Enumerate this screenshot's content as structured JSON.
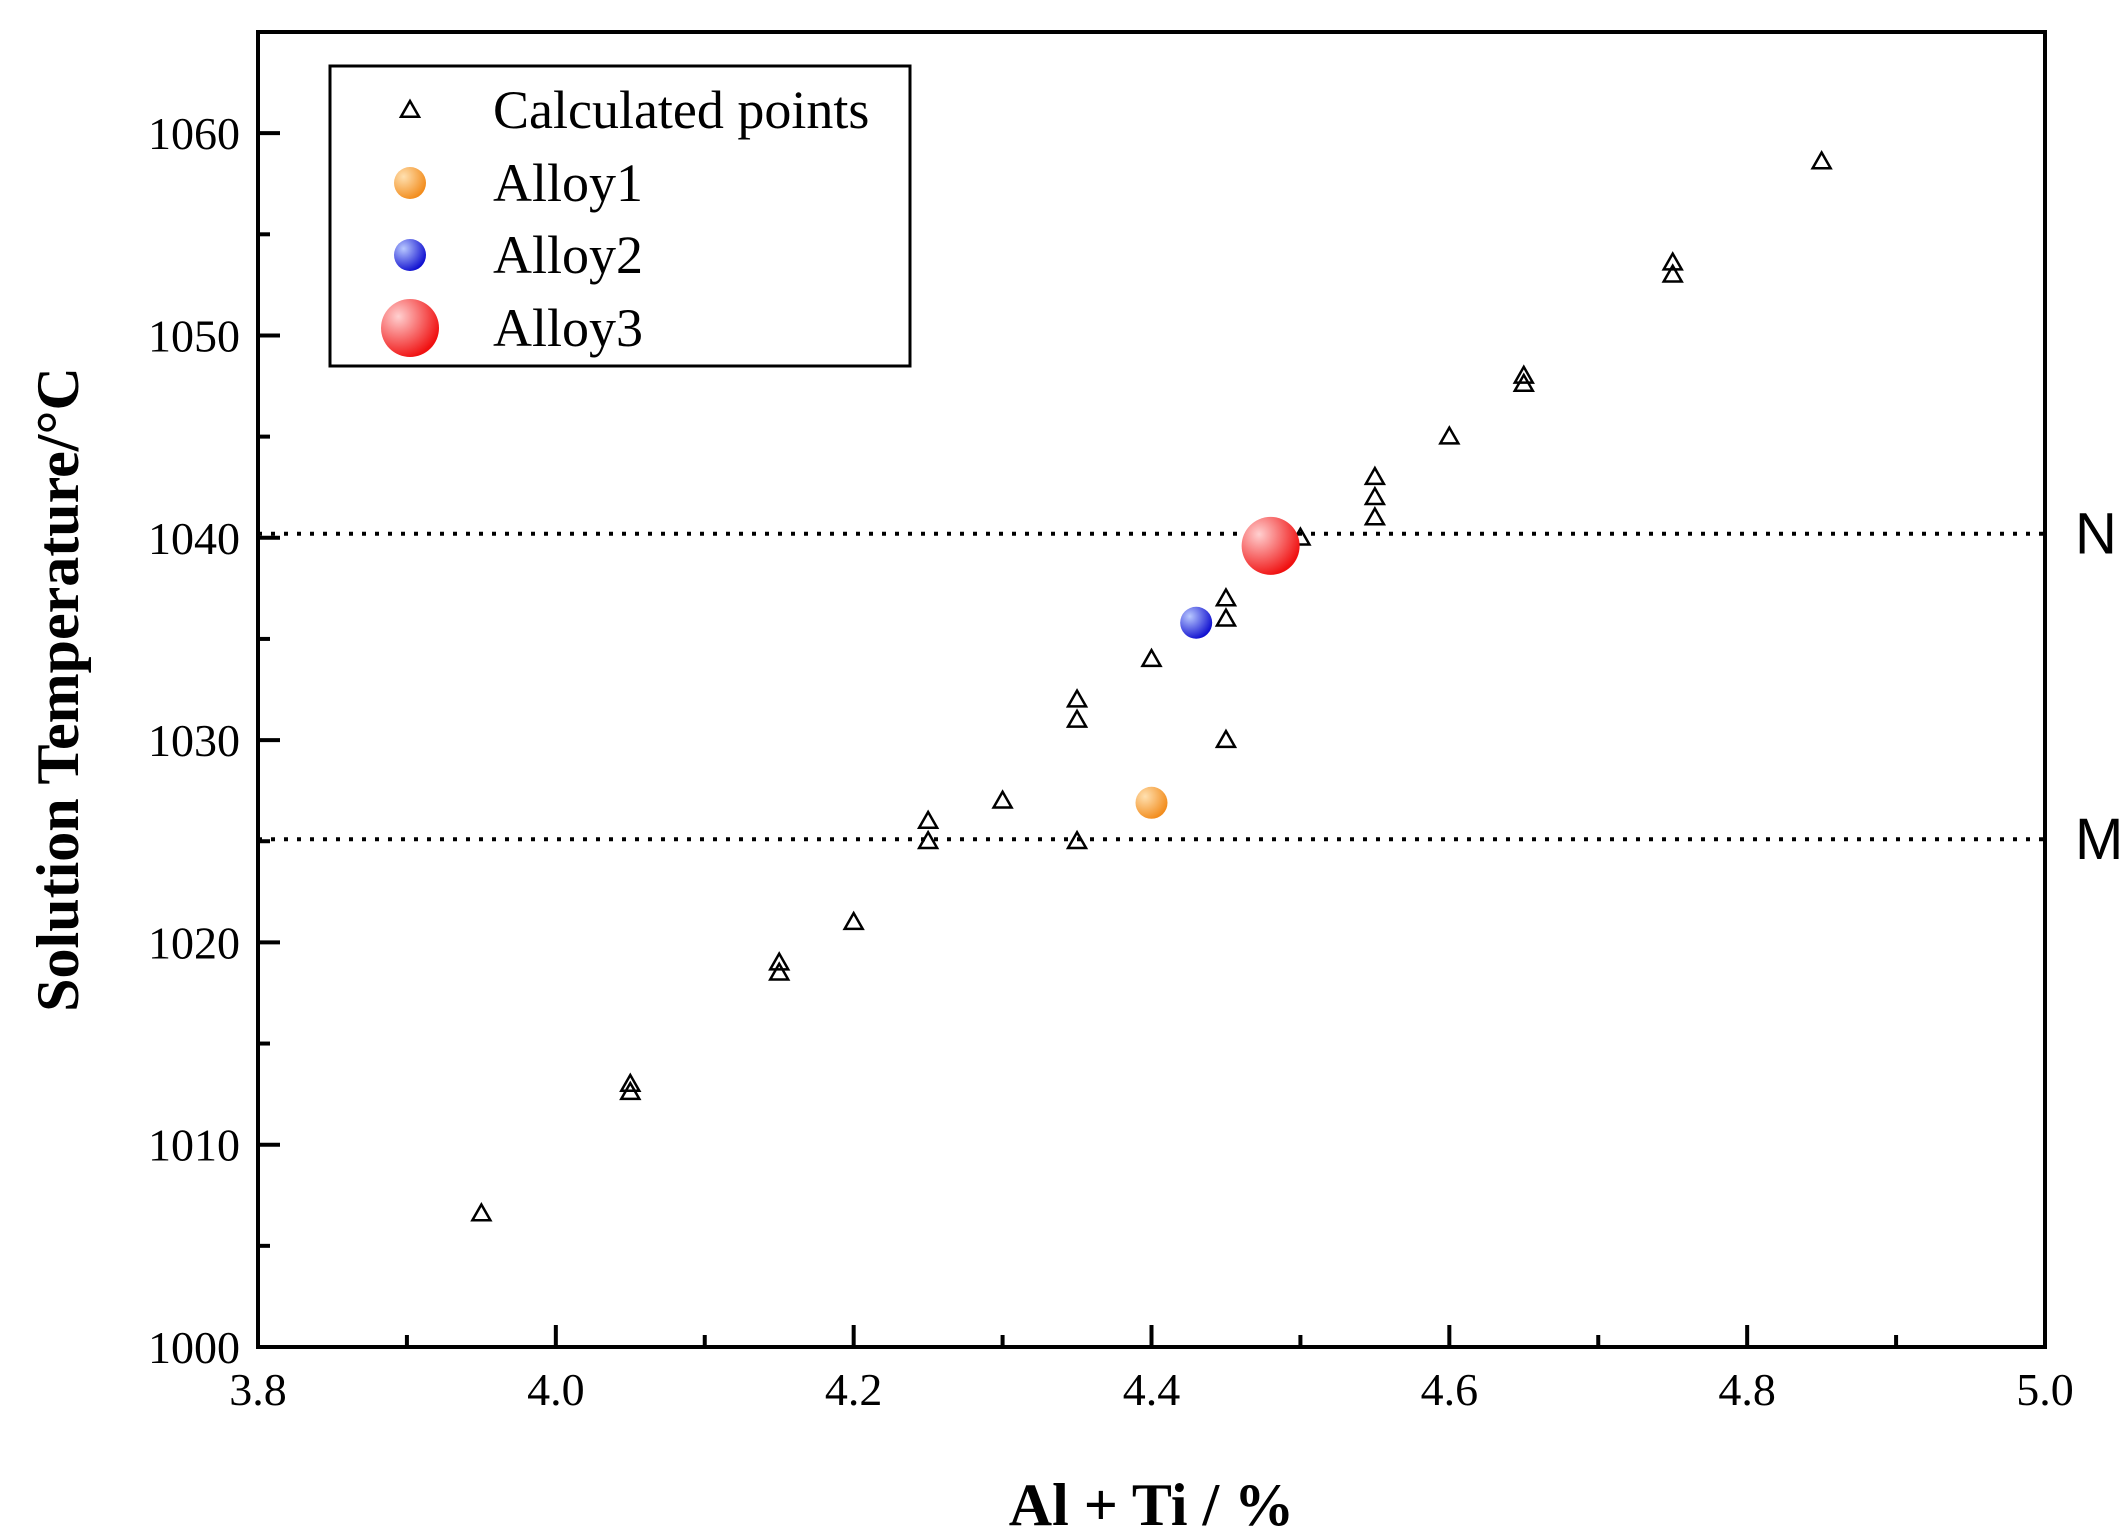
{
  "chart_data": {
    "type": "scatter",
    "title": "",
    "xlabel": "Al + Ti / %",
    "ylabel": "Solution Temperature/°C",
    "xlim": [
      3.8,
      5.0
    ],
    "ylim": [
      1000,
      1065
    ],
    "x_ticks": [
      3.8,
      4.0,
      4.2,
      4.4,
      4.6,
      4.8,
      5.0
    ],
    "x_tick_labels": [
      "3.8",
      "4.0",
      "4.2",
      "4.4",
      "4.6",
      "4.8",
      "5.0"
    ],
    "x_minor_ticks": [
      3.9,
      4.1,
      4.3,
      4.5,
      4.7,
      4.9
    ],
    "y_ticks": [
      1000,
      1010,
      1020,
      1030,
      1040,
      1050,
      1060
    ],
    "y_tick_labels": [
      "1000",
      "1010",
      "1020",
      "1030",
      "1040",
      "1050",
      "1060"
    ],
    "y_minor_ticks": [
      1005,
      1015,
      1025,
      1035,
      1045,
      1055
    ],
    "grid": false,
    "legend_position": "top-left",
    "series": [
      {
        "name": "Calculated points",
        "marker": "open-triangle",
        "color": "#000000",
        "points": [
          {
            "x": 3.95,
            "y": 1006.6
          },
          {
            "x": 4.05,
            "y": 1013.0
          },
          {
            "x": 4.05,
            "y": 1012.6
          },
          {
            "x": 4.15,
            "y": 1019.0
          },
          {
            "x": 4.15,
            "y": 1018.5
          },
          {
            "x": 4.2,
            "y": 1021.0
          },
          {
            "x": 4.25,
            "y": 1026.0
          },
          {
            "x": 4.25,
            "y": 1025.0
          },
          {
            "x": 4.3,
            "y": 1027.0
          },
          {
            "x": 4.35,
            "y": 1032.0
          },
          {
            "x": 4.35,
            "y": 1031.0
          },
          {
            "x": 4.35,
            "y": 1025.0
          },
          {
            "x": 4.4,
            "y": 1034.0
          },
          {
            "x": 4.45,
            "y": 1037.0
          },
          {
            "x": 4.45,
            "y": 1036.0
          },
          {
            "x": 4.45,
            "y": 1030.0
          },
          {
            "x": 4.48,
            "y": 1040.0
          },
          {
            "x": 4.5,
            "y": 1040.0
          },
          {
            "x": 4.55,
            "y": 1043.0
          },
          {
            "x": 4.55,
            "y": 1042.0
          },
          {
            "x": 4.55,
            "y": 1041.0
          },
          {
            "x": 4.6,
            "y": 1045.0
          },
          {
            "x": 4.65,
            "y": 1048.0
          },
          {
            "x": 4.65,
            "y": 1047.6
          },
          {
            "x": 4.75,
            "y": 1053.6
          },
          {
            "x": 4.75,
            "y": 1053.0
          },
          {
            "x": 4.85,
            "y": 1058.6
          }
        ]
      },
      {
        "name": "Alloy1",
        "marker": "sphere",
        "color": "#f28c1c",
        "highlight": "#ffe0b0",
        "size": "small",
        "points": [
          {
            "x": 4.4,
            "y": 1026.9
          }
        ]
      },
      {
        "name": "Alloy2",
        "marker": "sphere",
        "color": "#1010d0",
        "highlight": "#b8c8ff",
        "size": "small",
        "points": [
          {
            "x": 4.43,
            "y": 1035.8
          }
        ]
      },
      {
        "name": "Alloy3",
        "marker": "sphere",
        "color": "#f01010",
        "highlight": "#ffd0d0",
        "size": "large",
        "points": [
          {
            "x": 4.48,
            "y": 1039.6
          }
        ]
      }
    ],
    "reference_lines": [
      {
        "label": "N",
        "y": 1040.2,
        "style": "dotted"
      },
      {
        "label": "M",
        "y": 1025.1,
        "style": "dotted"
      }
    ]
  }
}
